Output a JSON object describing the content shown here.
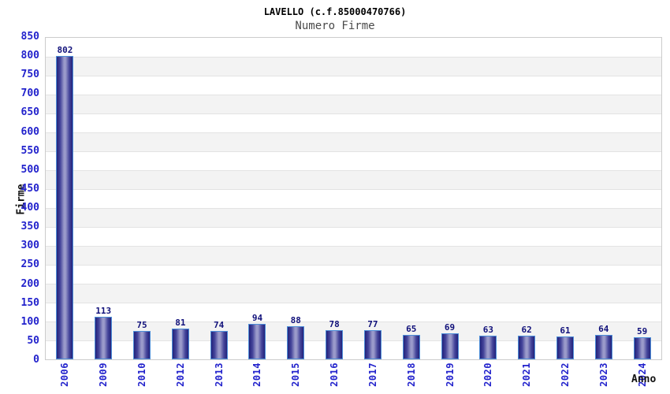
{
  "chart_data": {
    "type": "bar",
    "title": "LAVELLO (c.f.85000470766)",
    "subtitle": "Numero Firme",
    "xlabel": "Anno",
    "ylabel": "Firme",
    "categories": [
      "2006",
      "2009",
      "2010",
      "2012",
      "2013",
      "2014",
      "2015",
      "2016",
      "2017",
      "2018",
      "2019",
      "2020",
      "2021",
      "2022",
      "2023",
      "2024"
    ],
    "values": [
      802,
      113,
      75,
      81,
      74,
      94,
      88,
      78,
      77,
      65,
      69,
      63,
      62,
      61,
      64,
      59
    ],
    "ylim": [
      0,
      850
    ],
    "ytick_step": 50,
    "legend": "none",
    "grid": "horizontal gridlines every 50 with alternating white/gray bands",
    "colors": {
      "tick_blue": "#2222cc",
      "value_label_navy": "#10107a",
      "bar_border": "#4d8ed8",
      "bar_edge_dark": "#23237b",
      "bar_mid": "#44449a",
      "bar_center_light": "#9a9aca",
      "band_gray": "#f3f3f3",
      "band_white": "#ffffff",
      "grid_line": "#e3e3e3",
      "plot_border": "#cccccc",
      "title_black": "#000000",
      "subtitle_gray": "#4a4a4a"
    }
  }
}
